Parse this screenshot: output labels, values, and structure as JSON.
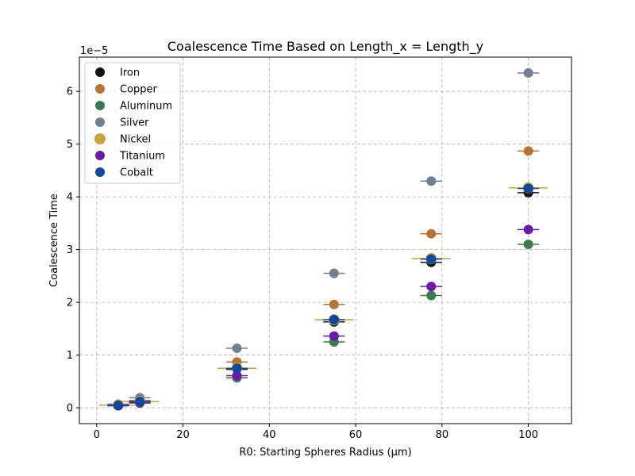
{
  "chart_data": {
    "type": "scatter",
    "title": "Coalescence Time Based on Length_x = Length_y",
    "xlabel": "R0: Starting Spheres Radius (μm)",
    "ylabel": "Coalescence Time",
    "y_offset_label": "1e−5",
    "xlim": [
      -4,
      110
    ],
    "ylim": [
      -0.3,
      6.65
    ],
    "x_ticks": [
      0,
      20,
      40,
      60,
      80,
      100
    ],
    "y_ticks": [
      0,
      1,
      2,
      3,
      4,
      5,
      6
    ],
    "grid": true,
    "legend_position": "upper-left",
    "series": [
      {
        "name": "Iron",
        "color": "#111111",
        "x": [
          5,
          10,
          32.5,
          55,
          77.5,
          100
        ],
        "y": [
          0.04,
          0.12,
          0.73,
          1.63,
          2.76,
          4.08
        ],
        "xerr": [
          2.5,
          2.5,
          2.5,
          2.5,
          2.5,
          2.5
        ]
      },
      {
        "name": "Copper",
        "color": "#b87333",
        "x": [
          5,
          10,
          32.5,
          55,
          77.5,
          100
        ],
        "y": [
          0.06,
          0.14,
          0.87,
          1.96,
          3.3,
          4.87
        ],
        "xerr": [
          2.5,
          2.5,
          2.5,
          2.5,
          2.5,
          2.5
        ]
      },
      {
        "name": "Aluminum",
        "color": "#3e7a4d",
        "x": [
          5,
          10,
          32.5,
          55,
          77.5,
          100
        ],
        "y": [
          0.04,
          0.09,
          0.57,
          1.25,
          2.13,
          3.1
        ],
        "xerr": [
          2.5,
          2.5,
          2.5,
          2.5,
          2.5,
          2.5
        ]
      },
      {
        "name": "Silver",
        "color": "#708090",
        "x": [
          5,
          10,
          32.5,
          55,
          77.5,
          100
        ],
        "y": [
          0.07,
          0.19,
          1.13,
          2.55,
          4.3,
          6.35
        ],
        "xerr": [
          2.5,
          2.5,
          2.5,
          2.5,
          2.5,
          2.5
        ]
      },
      {
        "name": "Nickel",
        "color": "#c8a43c",
        "x": [
          5,
          10,
          32.5,
          55,
          77.5,
          100
        ],
        "y": [
          0.05,
          0.12,
          0.75,
          1.67,
          2.83,
          4.17
        ],
        "xerr": [
          4.5,
          4.5,
          4.5,
          4.5,
          4.5,
          4.5
        ]
      },
      {
        "name": "Titanium",
        "color": "#6a1aa8",
        "x": [
          5,
          10,
          32.5,
          55,
          77.5,
          100
        ],
        "y": [
          0.04,
          0.1,
          0.61,
          1.36,
          2.3,
          3.38
        ],
        "xerr": [
          2.5,
          2.5,
          2.5,
          2.5,
          2.5,
          2.5
        ]
      },
      {
        "name": "Cobalt",
        "color": "#0d47a1",
        "x": [
          5,
          10,
          32.5,
          55,
          77.5,
          100
        ],
        "y": [
          0.05,
          0.12,
          0.75,
          1.67,
          2.82,
          4.16
        ],
        "xerr": [
          2.5,
          2.5,
          2.5,
          2.5,
          2.5,
          2.5
        ]
      }
    ]
  }
}
